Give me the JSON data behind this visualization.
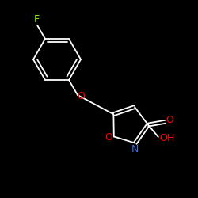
{
  "background": "#000000",
  "F_color": "#7cfc00",
  "O_color": "#ff0000",
  "N_color": "#4169e1",
  "bond_color": "#ffffff",
  "label_F": "F",
  "label_O": "O",
  "label_N": "N",
  "label_OH": "OH",
  "fig_w": 2.5,
  "fig_h": 2.5,
  "dpi": 100
}
